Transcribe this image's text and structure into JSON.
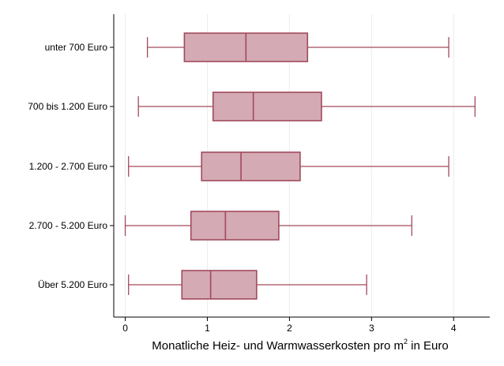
{
  "chart_data": {
    "type": "boxplot",
    "orientation": "horizontal",
    "categories": [
      "unter 700 Euro",
      "700 bis 1.200 Euro",
      "1.200 - 2.700 Euro",
      "2.700 - 5.200 Euro",
      "Über 5.200 Euro"
    ],
    "boxes": [
      {
        "min": 0.27,
        "q1": 0.72,
        "median": 1.47,
        "q3": 2.22,
        "max": 3.94
      },
      {
        "min": 0.16,
        "q1": 1.07,
        "median": 1.56,
        "q3": 2.39,
        "max": 4.26
      },
      {
        "min": 0.04,
        "q1": 0.93,
        "median": 1.41,
        "q3": 2.13,
        "max": 3.94
      },
      {
        "min": 0.0,
        "q1": 0.8,
        "median": 1.22,
        "q3": 1.87,
        "max": 3.49
      },
      {
        "min": 0.04,
        "q1": 0.69,
        "median": 1.04,
        "q3": 1.6,
        "max": 2.94
      }
    ],
    "xticks": [
      0,
      1,
      2,
      3,
      4
    ],
    "xtick_labels": [
      "0",
      "1",
      "2",
      "3",
      "4"
    ],
    "xlim": [
      -0.14,
      4.44
    ],
    "xlabel_main": "Monatliche Heiz- und Warmwasserkosten pro m",
    "xlabel_sup": "2",
    "xlabel_end": " in Euro",
    "grid": "vertical",
    "colors": {
      "box_fill": "#d4aab4",
      "box_stroke": "#a24a5c",
      "grid": "#ececec",
      "axis": "#000000"
    }
  }
}
